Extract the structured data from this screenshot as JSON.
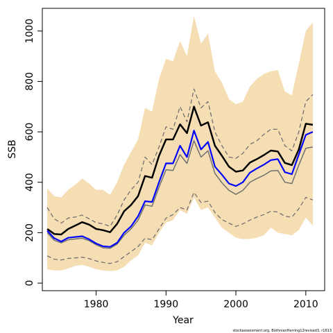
{
  "chart_data": {
    "type": "line",
    "title": "",
    "xlabel": "Year",
    "ylabel": "SSB",
    "xlim": [
      1972.3,
      2012.7
    ],
    "ylim": [
      -30,
      1090
    ],
    "xticks": [
      1980,
      1990,
      2000,
      2010
    ],
    "yticks": [
      0,
      200,
      400,
      600,
      800,
      1000
    ],
    "grid": false,
    "legend": "none",
    "colors": {
      "band": "#f5deb3",
      "black": "#000000",
      "blue": "#0000ff",
      "grey": "#707070",
      "dashed": "#707070"
    },
    "x": [
      1973,
      1974,
      1975,
      1976,
      1977,
      1978,
      1979,
      1980,
      1981,
      1982,
      1983,
      1984,
      1985,
      1986,
      1987,
      1988,
      1989,
      1990,
      1991,
      1992,
      1993,
      1994,
      1995,
      1996,
      1997,
      1998,
      1999,
      2000,
      2001,
      2002,
      2003,
      2004,
      2005,
      2006,
      2007,
      2008,
      2009,
      2010,
      2011
    ],
    "band_upper": [
      375,
      345,
      340,
      370,
      390,
      415,
      395,
      370,
      370,
      350,
      400,
      470,
      520,
      570,
      695,
      680,
      810,
      890,
      880,
      960,
      900,
      1060,
      950,
      990,
      840,
      795,
      730,
      710,
      720,
      780,
      810,
      830,
      840,
      845,
      760,
      745,
      870,
      1000,
      1035
    ],
    "band_lower": [
      55,
      50,
      50,
      58,
      68,
      72,
      65,
      55,
      50,
      48,
      50,
      65,
      90,
      110,
      160,
      150,
      200,
      240,
      250,
      290,
      275,
      340,
      290,
      300,
      260,
      220,
      200,
      180,
      175,
      175,
      180,
      190,
      220,
      200,
      195,
      190,
      210,
      260,
      228
    ],
    "series": [
      {
        "key": "black",
        "values": [
          215,
          195,
          193,
          215,
          228,
          242,
          232,
          215,
          210,
          202,
          235,
          285,
          310,
          345,
          425,
          418,
          505,
          570,
          570,
          630,
          595,
          700,
          625,
          638,
          545,
          505,
          462,
          442,
          447,
          478,
          492,
          508,
          526,
          522,
          477,
          468,
          530,
          632,
          628
        ]
      },
      {
        "key": "upper_dashed",
        "values": [
          300,
          255,
          238,
          258,
          262,
          270,
          255,
          240,
          235,
          225,
          270,
          330,
          370,
          400,
          500,
          470,
          540,
          620,
          610,
          700,
          640,
          770,
          695,
          720,
          600,
          545,
          500,
          495,
          515,
          550,
          565,
          590,
          610,
          610,
          545,
          525,
          600,
          720,
          748
        ]
      },
      {
        "key": "blue",
        "values": [
          208,
          178,
          165,
          180,
          183,
          186,
          174,
          157,
          146,
          144,
          160,
          200,
          225,
          265,
          325,
          322,
          400,
          475,
          475,
          545,
          500,
          605,
          530,
          560,
          462,
          430,
          395,
          385,
          400,
          438,
          455,
          470,
          488,
          492,
          440,
          432,
          510,
          588,
          600
        ]
      },
      {
        "key": "grey",
        "values": [
          200,
          170,
          160,
          172,
          175,
          178,
          168,
          152,
          140,
          138,
          155,
          190,
          215,
          250,
          310,
          305,
          380,
          450,
          447,
          510,
          475,
          565,
          500,
          525,
          435,
          398,
          368,
          352,
          368,
          400,
          415,
          428,
          445,
          447,
          400,
          395,
          468,
          535,
          540
        ]
      },
      {
        "key": "lower_dashed",
        "values": [
          108,
          95,
          92,
          98,
          100,
          103,
          97,
          88,
          82,
          78,
          85,
          105,
          125,
          145,
          178,
          172,
          215,
          258,
          272,
          300,
          290,
          360,
          320,
          325,
          280,
          252,
          238,
          225,
          235,
          250,
          262,
          272,
          285,
          282,
          265,
          262,
          295,
          340,
          330
        ]
      }
    ]
  },
  "footnote": "stockassessment.org, BothnianHerring12revised3, r1613"
}
